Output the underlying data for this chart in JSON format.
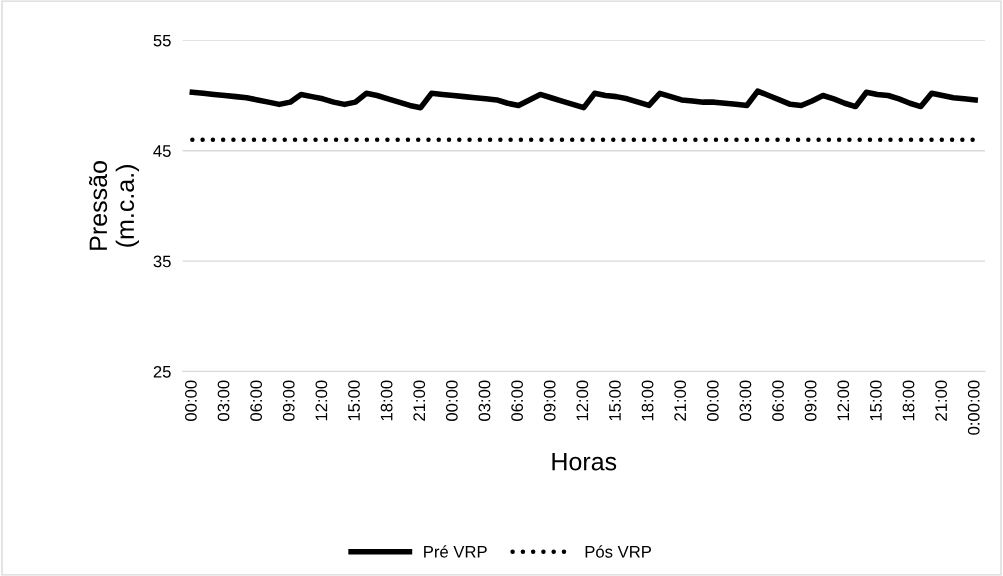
{
  "chart_data": {
    "type": "line",
    "xlabel": "Horas",
    "ylabel": "Pressão\n(m.c.a.)",
    "categories": [
      "00:00",
      null,
      null,
      "03:00",
      null,
      null,
      "06:00",
      null,
      null,
      "09:00",
      null,
      null,
      "12:00",
      null,
      null,
      "15:00",
      null,
      null,
      "18:00",
      null,
      null,
      "21:00",
      null,
      null,
      "00:00",
      null,
      null,
      "03:00",
      null,
      null,
      "06:00",
      null,
      null,
      "09:00",
      null,
      null,
      "12:00",
      null,
      null,
      "15:00",
      null,
      null,
      "18:00",
      null,
      null,
      "21:00",
      null,
      null,
      "00:00",
      null,
      null,
      "03:00",
      null,
      null,
      "06:00",
      null,
      null,
      "09:00",
      null,
      null,
      "12:00",
      null,
      null,
      "15:00",
      null,
      null,
      "18:00",
      null,
      null,
      "21:00",
      null,
      null,
      "0:00:00"
    ],
    "series": [
      {
        "name": "Pré VRP",
        "color": "#000000",
        "line_style": "solid",
        "values": [
          50.3,
          50.2,
          50.1,
          50.0,
          49.9,
          49.8,
          49.6,
          49.4,
          49.2,
          49.4,
          50.1,
          49.9,
          49.7,
          49.4,
          49.2,
          49.4,
          50.2,
          50.0,
          49.7,
          49.4,
          49.1,
          48.9,
          50.2,
          50.1,
          50.0,
          49.9,
          49.8,
          49.7,
          49.6,
          49.3,
          49.1,
          49.6,
          50.1,
          49.8,
          49.5,
          49.2,
          48.9,
          50.2,
          50.0,
          49.9,
          49.7,
          49.4,
          49.1,
          50.2,
          49.9,
          49.6,
          49.5,
          49.4,
          49.4,
          49.3,
          49.2,
          49.1,
          50.4,
          50.0,
          49.6,
          49.2,
          49.1,
          49.5,
          50.0,
          49.7,
          49.3,
          49.0,
          50.3,
          50.1,
          50.0,
          49.7,
          49.3,
          49.0,
          50.2,
          50.0,
          49.8,
          49.7,
          49.6
        ]
      },
      {
        "name": "Pós VRP",
        "color": "#000000",
        "line_style": "dotted",
        "values": [
          46,
          46,
          46,
          46,
          46,
          46,
          46,
          46,
          46,
          46,
          46,
          46,
          46,
          46,
          46,
          46,
          46,
          46,
          46,
          46,
          46,
          46,
          46,
          46,
          46,
          46,
          46,
          46,
          46,
          46,
          46,
          46,
          46,
          46,
          46,
          46,
          46,
          46,
          46,
          46,
          46,
          46,
          46,
          46,
          46,
          46,
          46,
          46,
          46,
          46,
          46,
          46,
          46,
          46,
          46,
          46,
          46,
          46,
          46,
          46,
          46,
          46,
          46,
          46,
          46,
          46,
          46,
          46,
          46,
          46,
          46,
          46,
          46
        ]
      }
    ],
    "ylim": [
      25,
      55
    ],
    "yticks": [
      25,
      35,
      45,
      55
    ],
    "grid": "y",
    "legend": "bottom",
    "marker": "none"
  }
}
